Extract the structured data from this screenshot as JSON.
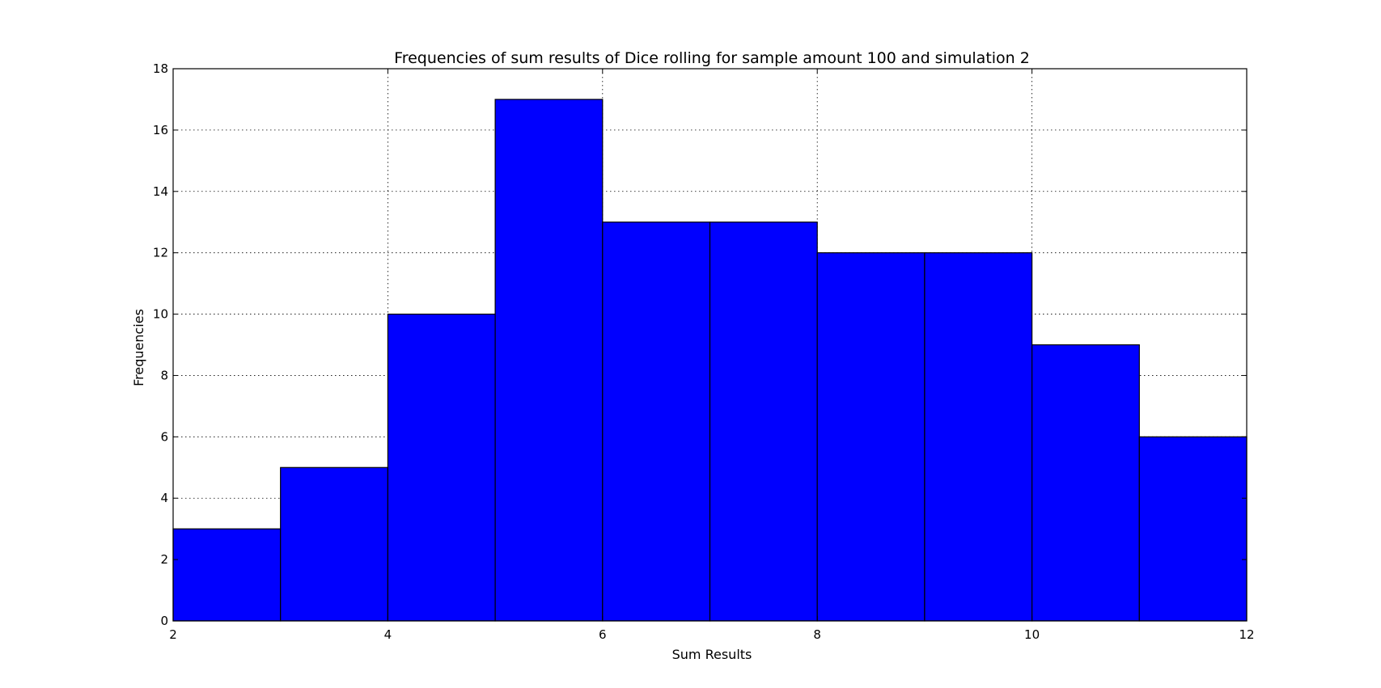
{
  "chart_data": {
    "type": "bar",
    "title": "Frequencies of sum results of Dice rolling for sample amount 100 and simulation 2",
    "xlabel": "Sum Results",
    "ylabel": "Frequencies",
    "bin_edges": [
      2,
      3,
      4,
      5,
      6,
      7,
      8,
      9,
      10,
      11,
      12
    ],
    "values": [
      3,
      5,
      10,
      17,
      13,
      13,
      12,
      12,
      9,
      6
    ],
    "xlim": [
      2,
      12
    ],
    "ylim": [
      0,
      18
    ],
    "xticks": [
      2,
      4,
      6,
      8,
      10,
      12
    ],
    "yticks": [
      0,
      2,
      4,
      6,
      8,
      10,
      12,
      14,
      16,
      18
    ],
    "grid": true,
    "bar_color": "#0000ff",
    "edge_color": "#000000"
  }
}
